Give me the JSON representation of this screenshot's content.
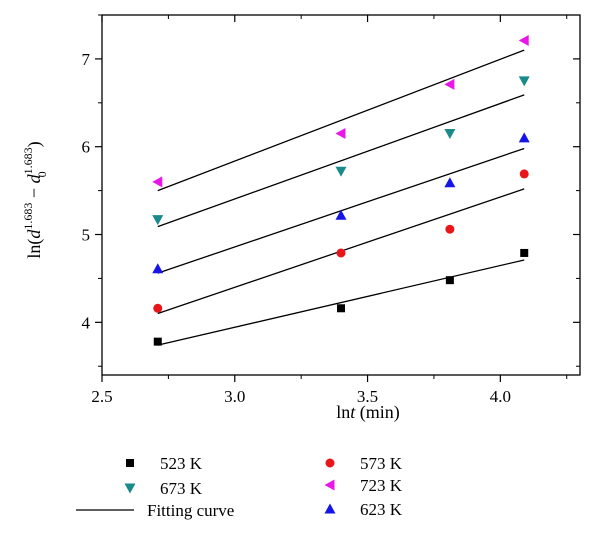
{
  "chart_data": {
    "type": "scatter",
    "xlabel": "lnt (min)",
    "ylabel": "ln(d^1.683 − d0^1.683)",
    "xlim": [
      2.5,
      4.3
    ],
    "ylim": [
      3.4,
      7.5
    ],
    "xticks": [
      "2.5",
      "3.0",
      "3.5",
      "4.0"
    ],
    "yticks": [
      "4",
      "5",
      "6",
      "7"
    ],
    "x": [
      2.71,
      3.4,
      3.81,
      4.09
    ],
    "series": [
      {
        "name": "523 K",
        "marker": "square",
        "color": "#000000",
        "values": [
          3.78,
          4.16,
          4.48,
          4.79
        ],
        "fit": [
          3.74,
          4.71
        ]
      },
      {
        "name": "573 K",
        "marker": "circle",
        "color": "#e8161b",
        "values": [
          4.16,
          4.79,
          5.06,
          5.69
        ],
        "fit": [
          4.1,
          5.52
        ]
      },
      {
        "name": "623 K",
        "marker": "triangle-up",
        "color": "#1515e8",
        "values": [
          4.61,
          5.22,
          5.59,
          6.1
        ],
        "fit": [
          4.56,
          5.98
        ]
      },
      {
        "name": "673 K",
        "marker": "triangle-down",
        "color": "#1a8a8a",
        "values": [
          5.17,
          5.72,
          6.15,
          6.75
        ],
        "fit": [
          5.09,
          6.59
        ]
      },
      {
        "name": "723 K",
        "marker": "triangle-left",
        "color": "#e817e8",
        "values": [
          5.6,
          6.15,
          6.71,
          7.21
        ],
        "fit": [
          5.5,
          7.1
        ]
      }
    ],
    "legend": {
      "placement": "bottom",
      "fitting_curve_label": "Fitting curve"
    },
    "grid": false
  }
}
